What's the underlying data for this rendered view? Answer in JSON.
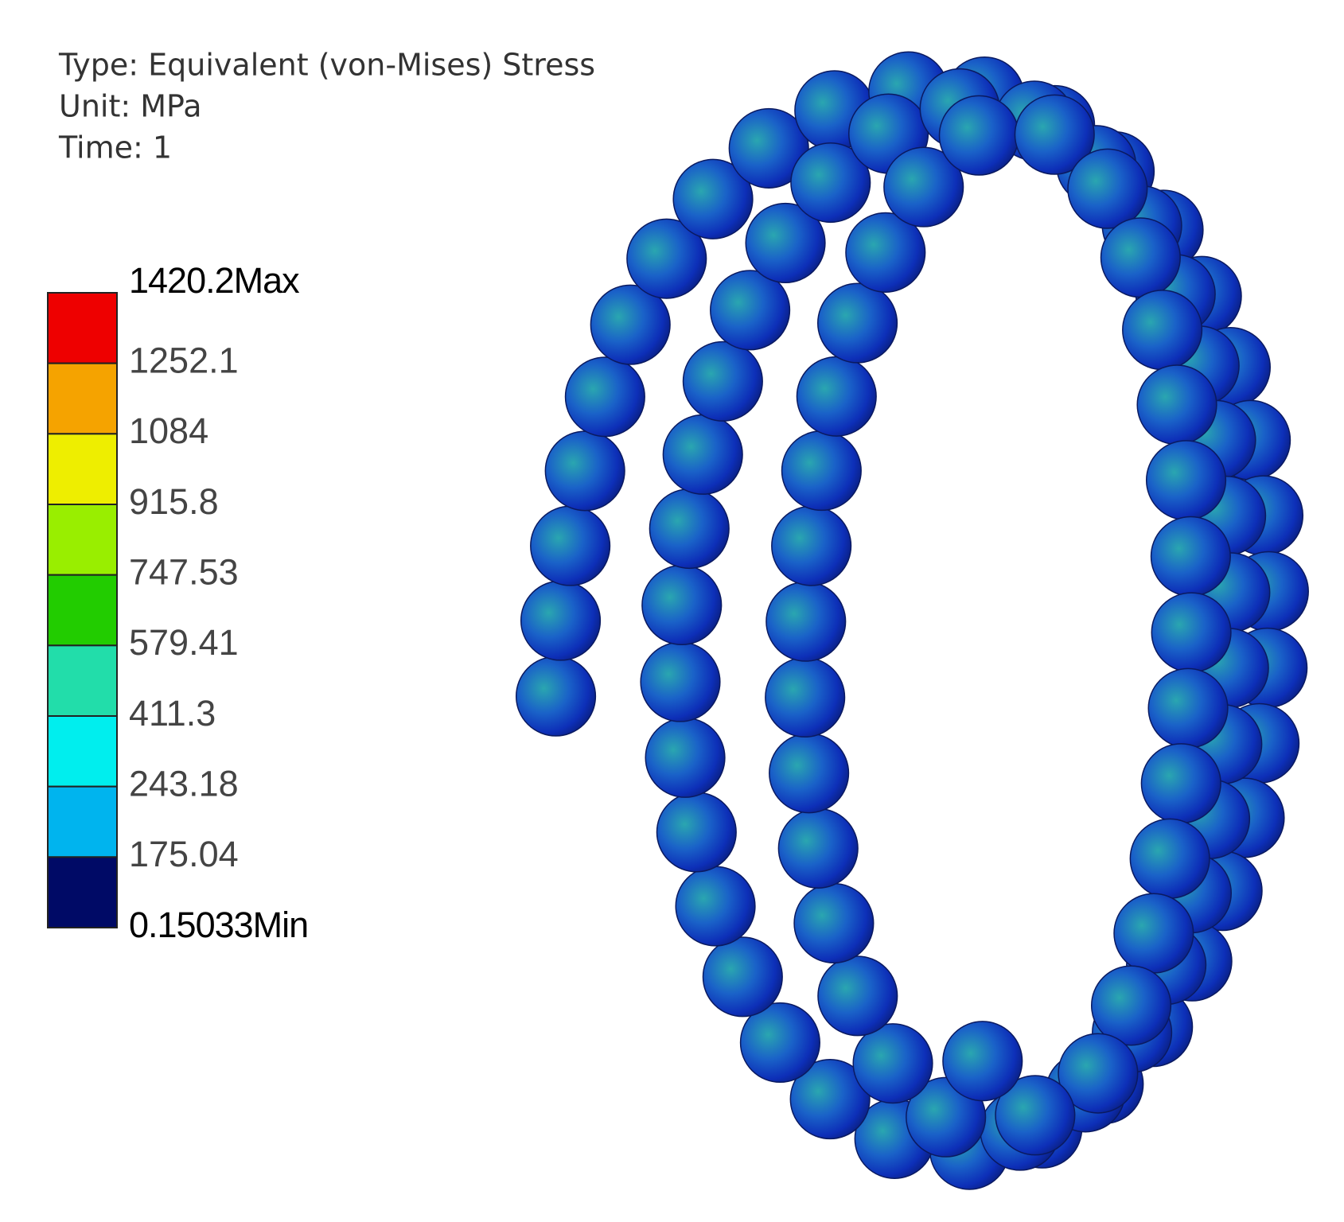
{
  "header": {
    "lines": [
      "Type: Equivalent (von-Mises) Stress",
      "Unit: MPa",
      "Time: 1"
    ]
  },
  "legend": {
    "labels": [
      "1420.2Max",
      "1252.1",
      "1084",
      "915.8",
      "747.53",
      "579.41",
      "411.3",
      "243.18",
      "175.04",
      "0.15033Min"
    ],
    "colors": [
      "#ee0000",
      "#f5a300",
      "#eeee00",
      "#99ee00",
      "#22cc00",
      "#22ddaa",
      "#00eeee",
      "#00b4ee",
      "#000a66"
    ]
  }
}
